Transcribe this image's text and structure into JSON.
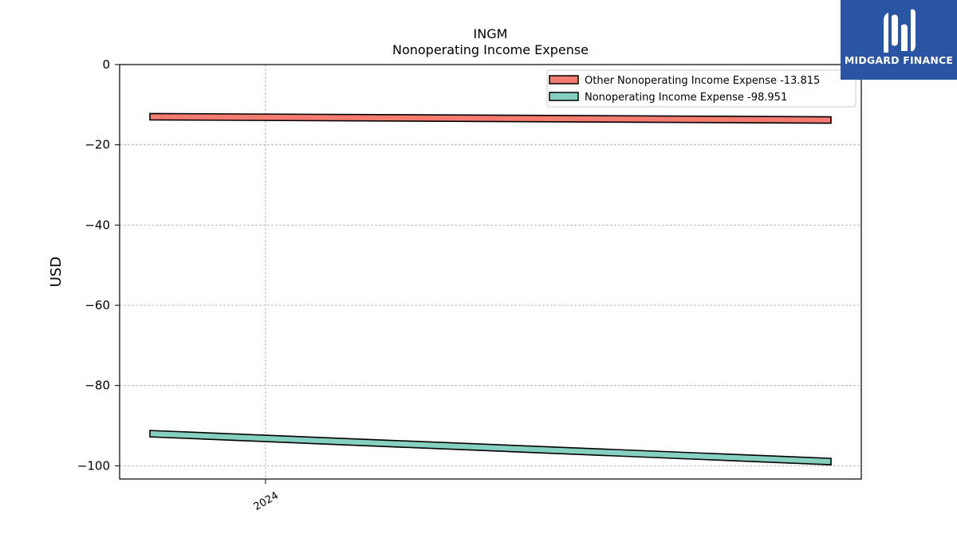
{
  "brand": {
    "name": "MIDGARD FINANCE",
    "bg_color": "#2a55a5",
    "icon": "midgard-logo-icon"
  },
  "chart_data": {
    "type": "line",
    "title": "INGM",
    "subtitle": "Nonoperating Income Expense",
    "xlabel": "",
    "ylabel": "USD",
    "x_tick_labels": [
      "2024"
    ],
    "y_ticks": [
      0,
      -20,
      -40,
      -60,
      -80,
      -100
    ],
    "y_tick_labels": [
      "0",
      "−20",
      "−40",
      "−60",
      "−80",
      "−100"
    ],
    "ylim": [
      -103.3,
      0
    ],
    "x_start": "2023-09-30",
    "x_end": "2025-03-31",
    "grid": true,
    "legend_position": "top-right",
    "series": [
      {
        "name": "Other Nonoperating Income Expense",
        "legend_value": "-13.815",
        "color": "#f47b6f",
        "points": [
          [
            "2023-09-30",
            -13.0
          ],
          [
            "2025-03-31",
            -13.815
          ]
        ]
      },
      {
        "name": "Nonoperating Income Expense",
        "legend_value": "-98.951",
        "color": "#86d0bf",
        "points": [
          [
            "2023-09-30",
            -92.0
          ],
          [
            "2025-03-31",
            -98.951
          ]
        ]
      }
    ]
  }
}
